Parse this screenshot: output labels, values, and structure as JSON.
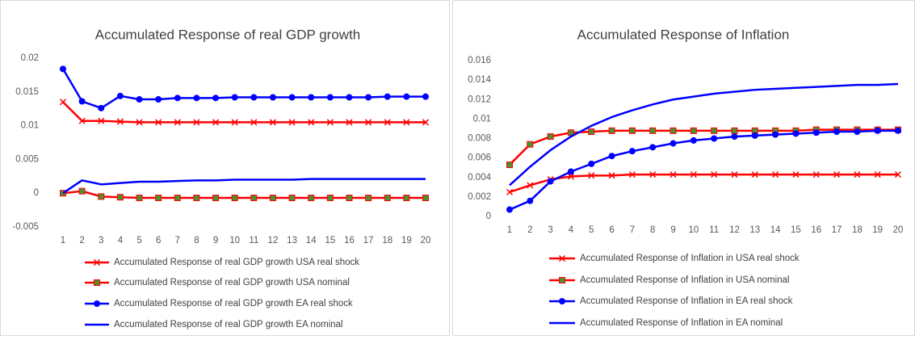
{
  "chart_data": [
    {
      "type": "line",
      "title": "Accumulated Response of real GDP growth",
      "categories": [
        1,
        2,
        3,
        4,
        5,
        6,
        7,
        8,
        9,
        10,
        11,
        12,
        13,
        14,
        15,
        16,
        17,
        18,
        19,
        20
      ],
      "ylim": [
        -0.005,
        0.02
      ],
      "yticks": [
        -0.005,
        0,
        0.005,
        0.01,
        0.015,
        0.02
      ],
      "grid": false,
      "legend": "bottom",
      "series": [
        {
          "name": "Accumulated Response of real GDP growth USA real shock",
          "color": "#ff0000",
          "marker": "x",
          "marker_color": "#ff0000",
          "values": [
            0.0135,
            0.0107,
            0.0107,
            0.0106,
            0.0105,
            0.0105,
            0.0105,
            0.0105,
            0.0105,
            0.0105,
            0.0105,
            0.0105,
            0.0105,
            0.0105,
            0.0105,
            0.0105,
            0.0105,
            0.0105,
            0.0105,
            0.0105
          ]
        },
        {
          "name": "Accumulated Response of real GDP growth USA nominal",
          "color": "#ff0000",
          "marker": "square",
          "marker_color": "#4e8f2f",
          "values": [
            0,
            0.0003,
            -0.0005,
            -0.0006,
            -0.0007,
            -0.0007,
            -0.0007,
            -0.0007,
            -0.0007,
            -0.0007,
            -0.0007,
            -0.0007,
            -0.0007,
            -0.0007,
            -0.0007,
            -0.0007,
            -0.0007,
            -0.0007,
            -0.0007,
            -0.0007
          ]
        },
        {
          "name": "Accumulated Response of real GDP growth EA real shock",
          "color": "#0000ff",
          "marker": "circle",
          "marker_color": "#0000ff",
          "values": [
            0.0184,
            0.0136,
            0.0126,
            0.0144,
            0.0139,
            0.0139,
            0.0141,
            0.0141,
            0.0141,
            0.0142,
            0.0142,
            0.0142,
            0.0142,
            0.0142,
            0.0142,
            0.0142,
            0.0142,
            0.0143,
            0.0143,
            0.0143
          ]
        },
        {
          "name": "Accumulated Response of real GDP growth EA nominal",
          "color": "#0000ff",
          "marker": "none",
          "marker_color": "#0000ff",
          "values": [
            0,
            0.0019,
            0.0013,
            0.0015,
            0.0017,
            0.0017,
            0.0018,
            0.0019,
            0.0019,
            0.002,
            0.002,
            0.002,
            0.002,
            0.0021,
            0.0021,
            0.0021,
            0.0021,
            0.0021,
            0.0021,
            0.0021
          ]
        }
      ]
    },
    {
      "type": "line",
      "title": "Accumulated Response of Inflation",
      "categories": [
        1,
        2,
        3,
        4,
        5,
        6,
        7,
        8,
        9,
        10,
        11,
        12,
        13,
        14,
        15,
        16,
        17,
        18,
        19,
        20
      ],
      "ylim": [
        0,
        0.016
      ],
      "yticks": [
        0,
        0.002,
        0.004,
        0.006,
        0.008,
        0.01,
        0.012,
        0.014,
        0.016
      ],
      "grid": false,
      "legend": "bottom",
      "series": [
        {
          "name": "Accumulated Response of Inflation in USA real shock",
          "color": "#ff0000",
          "marker": "x",
          "marker_color": "#ff0000",
          "values": [
            0.0025,
            0.0032,
            0.0038,
            0.0041,
            0.0042,
            0.0042,
            0.0043,
            0.0043,
            0.0043,
            0.0043,
            0.0043,
            0.0043,
            0.0043,
            0.0043,
            0.0043,
            0.0043,
            0.0043,
            0.0043,
            0.0043,
            0.0043
          ]
        },
        {
          "name": "Accumulated Response of Inflation in USA nominal",
          "color": "#ff0000",
          "marker": "square",
          "marker_color": "#4e8f2f",
          "values": [
            0.0053,
            0.0074,
            0.0082,
            0.0086,
            0.0087,
            0.0088,
            0.0088,
            0.0088,
            0.0088,
            0.0088,
            0.0088,
            0.0088,
            0.0088,
            0.0088,
            0.0088,
            0.0089,
            0.0089,
            0.0089,
            0.0089,
            0.0089
          ]
        },
        {
          "name": "Accumulated Response of Inflation in EA real shock",
          "color": "#0000ff",
          "marker": "circle",
          "marker_color": "#0000ff",
          "values": [
            0.0007,
            0.0016,
            0.0036,
            0.0046,
            0.0054,
            0.0062,
            0.0067,
            0.0071,
            0.0075,
            0.0078,
            0.008,
            0.0082,
            0.0083,
            0.0084,
            0.0085,
            0.0086,
            0.0087,
            0.0087,
            0.0088,
            0.0088
          ]
        },
        {
          "name": "Accumulated Response of Inflation in EA nominal",
          "color": "#0000ff",
          "marker": "none",
          "marker_color": "#0000ff",
          "values": [
            0.0032,
            0.0051,
            0.0068,
            0.0082,
            0.0093,
            0.0102,
            0.0109,
            0.0115,
            0.012,
            0.0123,
            0.0126,
            0.0128,
            0.013,
            0.0131,
            0.0132,
            0.0133,
            0.0134,
            0.0135,
            0.0135,
            0.0136
          ]
        }
      ]
    }
  ]
}
